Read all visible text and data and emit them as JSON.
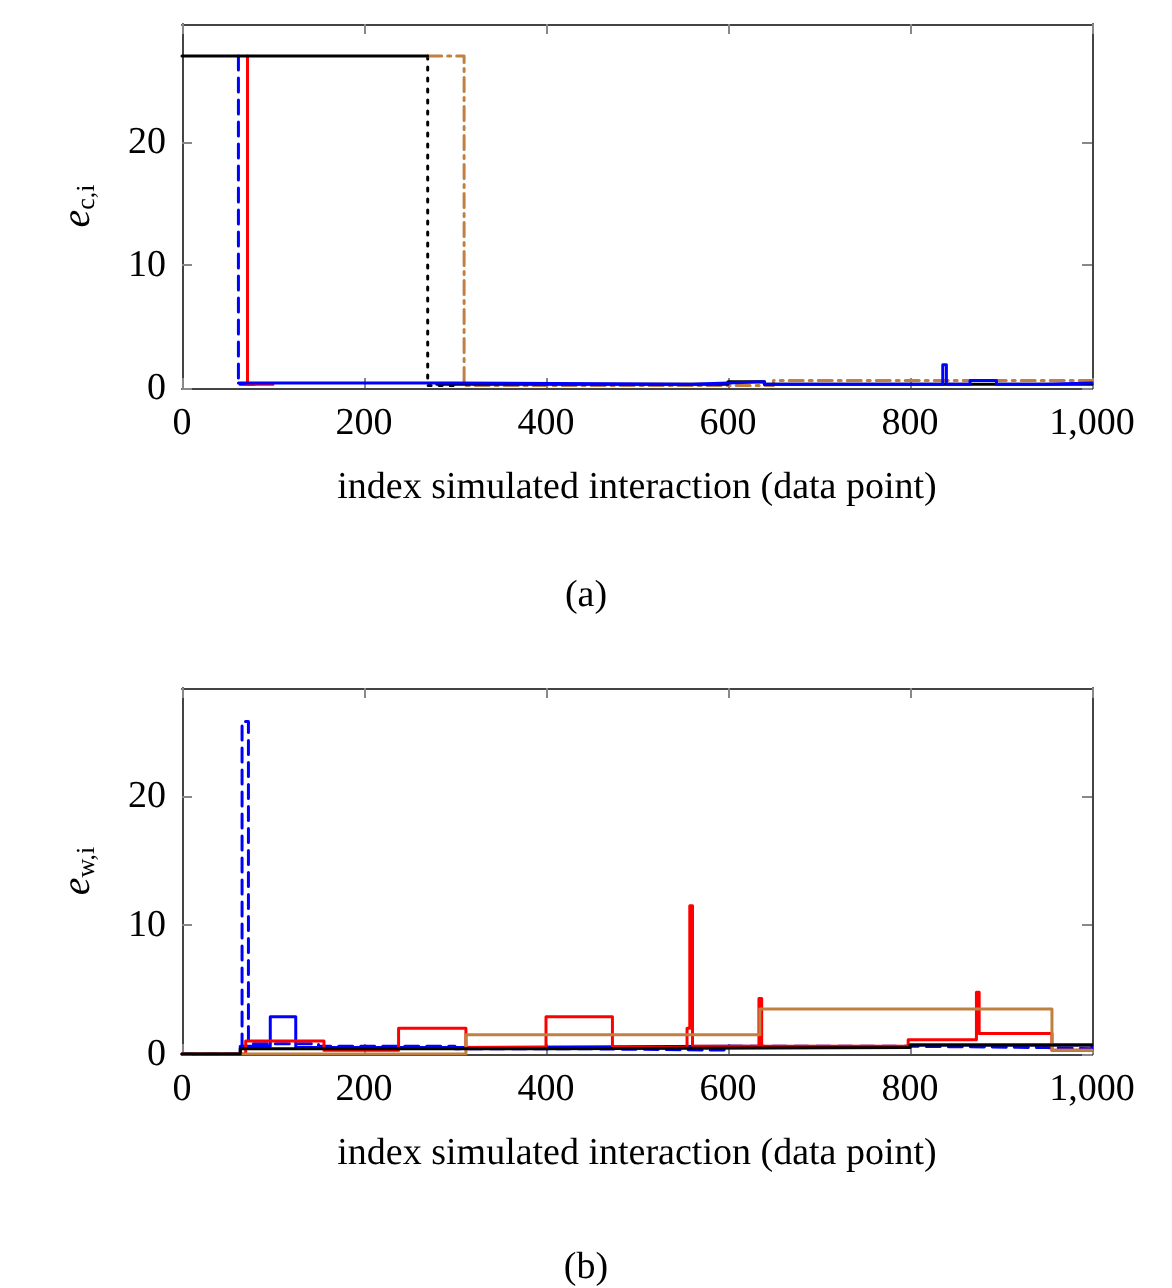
{
  "chart_data": [
    {
      "type": "step",
      "title": "(a)",
      "xlabel": "index simulated interaction (data point)",
      "ylabel": "e$_{c,i}$",
      "xlim": [
        0,
        1000
      ],
      "xticks": [
        0,
        200,
        400,
        600,
        800,
        {
          "value": 1000,
          "label": "1,000"
        }
      ],
      "ylim": [
        0,
        29.6
      ],
      "yticks": [
        0,
        10,
        20
      ],
      "grid": false,
      "marker": "none",
      "series": [
        {
          "color": "#000000",
          "line_style": "dotted",
          "x": [
            270,
            270,
            300
          ],
          "values": [
            27,
            0.2,
            0.2
          ]
        },
        {
          "color": "#0000ff",
          "line_style": "dashed",
          "x": [
            62,
            62,
            80
          ],
          "values": [
            27,
            0.3,
            0.3
          ]
        },
        {
          "color": "#ff0000",
          "line_style": "solid",
          "x": [
            72,
            72,
            100
          ],
          "values": [
            27,
            0.3,
            0.3
          ]
        },
        {
          "color": "#bf8040",
          "line_style": "dashdot",
          "x": [
            270,
            310,
            310,
            650,
            1000
          ],
          "values": [
            27,
            27,
            0.2,
            0.6,
            0.6
          ]
        },
        {
          "color": "#000000",
          "line_style": "solid",
          "x": [
            0,
            270
          ],
          "values": [
            27,
            27
          ]
        },
        {
          "color": "#000000",
          "line_style": "solid",
          "x": [
            280,
            600,
            640,
            1000
          ],
          "values": [
            0.3,
            0.5,
            0.3,
            0.3
          ]
        },
        {
          "color": "#0000ff",
          "line_style": "solid",
          "x": [
            62,
            300,
            560,
            600,
            640,
            836,
            840,
            866,
            895,
            950,
            1000
          ],
          "values": [
            0.4,
            0.3,
            0.4,
            0.5,
            0.3,
            1.9,
            0.3,
            0.6,
            0.3,
            0.4,
            0.4
          ]
        }
      ]
    },
    {
      "type": "step",
      "title": "(b)",
      "xlabel": "index simulated interaction (data point)",
      "ylabel": "e$_{w,i}$",
      "xlim": [
        0,
        1000
      ],
      "xticks": [
        0,
        200,
        400,
        600,
        800,
        {
          "value": 1000,
          "label": "1,000"
        }
      ],
      "ylim": [
        0,
        28.4
      ],
      "yticks": [
        0,
        10,
        20
      ],
      "grid": false,
      "marker": "none",
      "series": [
        {
          "color": "#0000ff",
          "line_style": "dashed",
          "x": [
            0,
            64,
            66,
            73,
            150,
            300,
            450,
            600,
            800,
            950,
            1000
          ],
          "values": [
            0,
            0.5,
            25.8,
            0.8,
            0.6,
            0.4,
            0.3,
            0.6,
            0.5,
            0.4,
            0.7
          ]
        },
        {
          "color": "#0000ff",
          "line_style": "solid",
          "x": [
            0,
            64,
            97,
            125,
            300,
            600,
            800,
            1000
          ],
          "values": [
            0,
            0.6,
            2.9,
            0.5,
            0.6,
            0.5,
            0.7,
            0.7
          ]
        },
        {
          "color": "#ff0000",
          "line_style": "solid",
          "x": [
            0,
            70,
            156,
            238,
            312,
            400,
            473,
            555,
            558,
            561,
            634,
            637,
            798,
            873,
            876,
            956,
            1000
          ],
          "values": [
            0,
            1.0,
            0.3,
            2.0,
            0.5,
            2.9,
            0.5,
            2.0,
            11.5,
            0.6,
            4.3,
            0.6,
            1.1,
            4.8,
            1.6,
            0.3,
            0.3
          ]
        },
        {
          "color": "#bf8040",
          "line_style": "solid",
          "x": [
            0,
            312,
            635,
            956,
            1000
          ],
          "values": [
            0,
            1.5,
            3.5,
            0.3,
            0.3
          ]
        },
        {
          "color": "#000000",
          "line_style": "solid",
          "x": [
            0,
            64,
            400,
            800,
            1000
          ],
          "values": [
            0,
            0.4,
            0.5,
            0.7,
            0.7
          ]
        }
      ]
    }
  ]
}
